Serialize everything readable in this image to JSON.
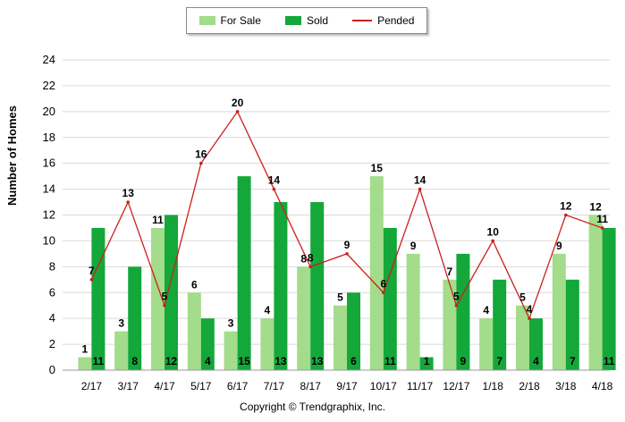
{
  "legend": {
    "for_sale": "For Sale",
    "sold": "Sold",
    "pended": "Pended"
  },
  "ylabel": "Number of Homes",
  "copyright": "Copyright © Trendgraphix, Inc.",
  "colors": {
    "for_sale": "#a3dc8a",
    "sold": "#14a73a",
    "pended": "#cc1f1f",
    "grid": "#d9d9d9"
  },
  "chart_data": {
    "type": "bar",
    "categories": [
      "2/17",
      "3/17",
      "4/17",
      "5/17",
      "6/17",
      "7/17",
      "8/17",
      "9/17",
      "10/17",
      "11/17",
      "12/17",
      "1/18",
      "2/18",
      "3/18",
      "4/18"
    ],
    "ylim": [
      0,
      24
    ],
    "yticks": [
      0,
      2,
      4,
      6,
      8,
      10,
      12,
      14,
      16,
      18,
      20,
      22,
      24
    ],
    "grid": true,
    "legend_position": "top",
    "ylabel": "Number of Homes",
    "series": [
      {
        "name": "For Sale",
        "type": "bar",
        "values": [
          1,
          3,
          11,
          6,
          3,
          4,
          8,
          5,
          15,
          9,
          7,
          4,
          5,
          9,
          12
        ]
      },
      {
        "name": "Sold",
        "type": "bar",
        "values": [
          11,
          8,
          12,
          4,
          15,
          13,
          13,
          6,
          11,
          1,
          9,
          7,
          4,
          7,
          11
        ]
      },
      {
        "name": "Pended",
        "type": "line",
        "values": [
          7,
          13,
          5,
          16,
          20,
          14,
          8,
          9,
          6,
          14,
          5,
          10,
          4,
          12,
          11
        ]
      }
    ]
  }
}
